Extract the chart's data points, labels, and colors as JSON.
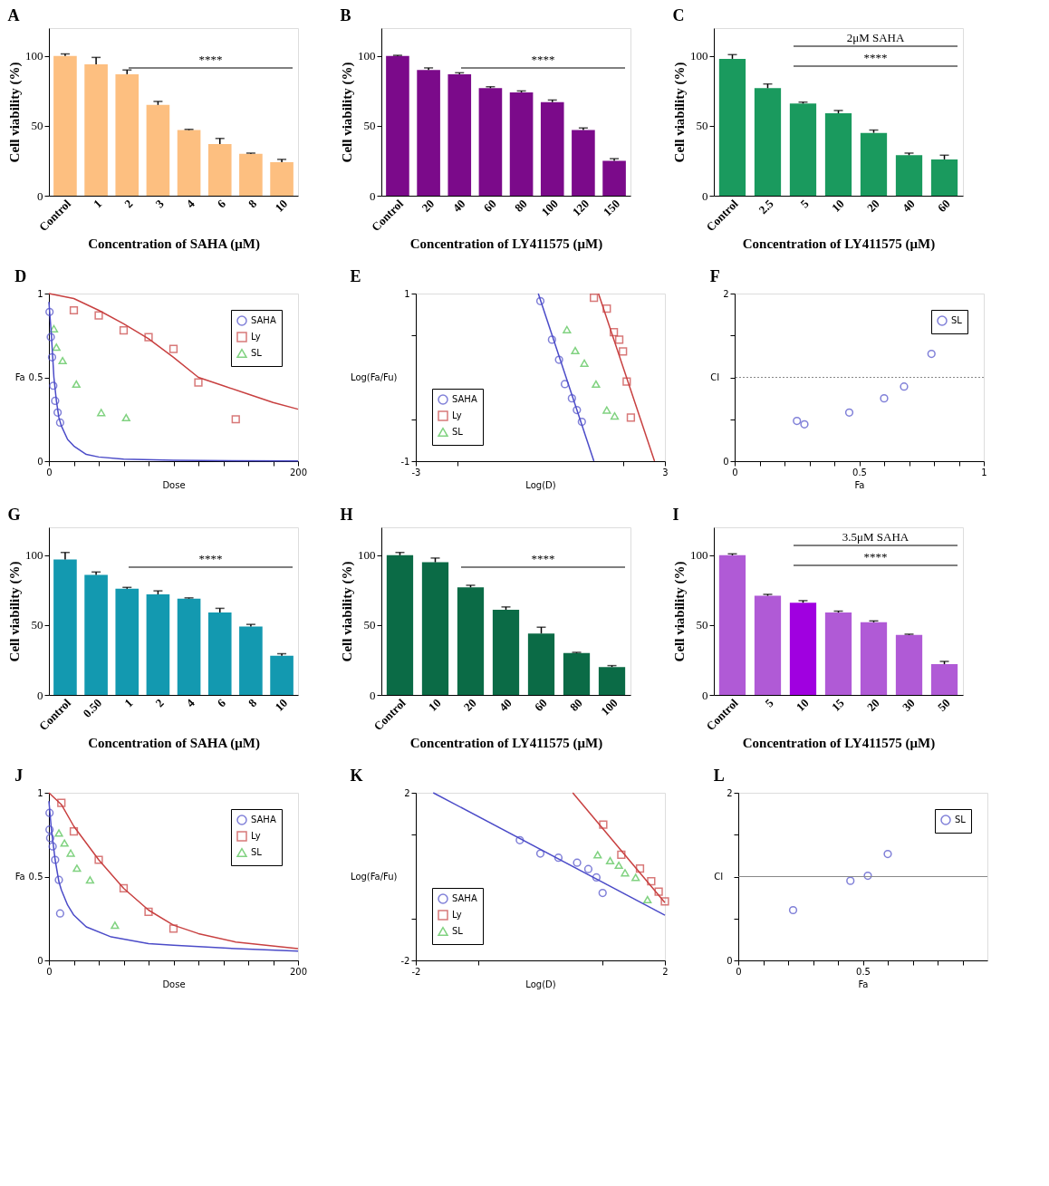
{
  "chart_data": [
    {
      "type": "bar",
      "title": "A",
      "xlabel": "Concentration of SAHA (μM)",
      "ylabel": "Cell viability (%)",
      "categories": [
        "Control",
        "1",
        "2",
        "3",
        "4",
        "6",
        "8",
        "10"
      ],
      "values": [
        100,
        94,
        87,
        65,
        47,
        37,
        30,
        24
      ],
      "errors": [
        1.5,
        5,
        3,
        2.5,
        0.5,
        4,
        0.5,
        2
      ],
      "color": "#fdbf80",
      "ylim": [
        0,
        120
      ],
      "yticks": [
        0,
        50,
        100
      ],
      "legend": false,
      "annotations": [
        "****"
      ]
    },
    {
      "type": "bar",
      "title": "B",
      "xlabel": "Concentration of LY411575 (μM)",
      "ylabel": "Cell viability (%)",
      "categories": [
        "Control",
        "20",
        "40",
        "60",
        "80",
        "100",
        "120",
        "150"
      ],
      "values": [
        100,
        90,
        87,
        77,
        74,
        67,
        47,
        25
      ],
      "errors": [
        0.5,
        1.5,
        1,
        1,
        1,
        1.5,
        1.5,
        1.5
      ],
      "color": "#7b0a8a",
      "ylim": [
        0,
        120
      ],
      "yticks": [
        0,
        50,
        100
      ],
      "legend": false,
      "annotations": [
        "****"
      ]
    },
    {
      "type": "bar",
      "title": "C",
      "xlabel": "Concentration of LY411575 (μM)",
      "ylabel": "Cell viability (%)",
      "categories": [
        "Control",
        "2.5",
        "5",
        "10",
        "20",
        "40",
        "60"
      ],
      "values": [
        98,
        77,
        66,
        59,
        45,
        29,
        26
      ],
      "errors": [
        3,
        3,
        1,
        2,
        2,
        1.5,
        3
      ],
      "color": "#1a9a5e",
      "ylim": [
        0,
        120
      ],
      "yticks": [
        0,
        50,
        100
      ],
      "legend": false,
      "annotations": [
        "2μM SAHA",
        "****"
      ]
    },
    {
      "type": "scatter",
      "title": "D",
      "xlabel": "Dose",
      "ylabel": "Fa",
      "xlim": [
        0,
        200
      ],
      "ylim": [
        0,
        1
      ],
      "legend": "top right",
      "xticks": [
        0,
        {
          "value": 20,
          "label": null
        },
        {
          "value": 40,
          "label": null
        },
        {
          "value": 60,
          "label": null
        },
        {
          "value": 80,
          "label": null
        },
        {
          "value": 100,
          "label": null
        },
        {
          "value": 120,
          "label": null
        },
        {
          "value": 140,
          "label": null
        },
        {
          "value": 160,
          "label": null
        },
        {
          "value": 180,
          "label": null
        },
        200
      ],
      "yticks": [
        0,
        0.5,
        1
      ],
      "series": [
        {
          "name": "SAHA",
          "color": "#4b4bc8",
          "marker": "circle",
          "x": [
            0.5,
            1.5,
            2.5,
            3.5,
            5,
            7,
            9
          ],
          "values": [
            0.89,
            0.74,
            0.62,
            0.45,
            0.36,
            0.29,
            0.23
          ]
        },
        {
          "name": "Ly",
          "color": "#c84040",
          "marker": "square",
          "x": [
            20,
            40,
            60,
            80,
            100,
            120,
            150
          ],
          "values": [
            0.9,
            0.87,
            0.78,
            0.74,
            0.67,
            0.47,
            0.25
          ]
        },
        {
          "name": "SL",
          "color": "#4cc04c",
          "marker": "triangle",
          "x": [
            4,
            6,
            11,
            22,
            42,
            62
          ],
          "values": [
            0.79,
            0.68,
            0.6,
            0.46,
            0.29,
            0.26
          ]
        },
        {
          "type": "line",
          "color": "#4b4bc8",
          "x": [
            0,
            1,
            2,
            4,
            6,
            8,
            10,
            15,
            20,
            30,
            40,
            60,
            100,
            200
          ],
          "values": [
            0.95,
            0.85,
            0.75,
            0.5,
            0.36,
            0.26,
            0.21,
            0.13,
            0.09,
            0.04,
            0.025,
            0.012,
            0.005,
            0.001
          ]
        },
        {
          "type": "line",
          "color": "#c84040",
          "x": [
            0,
            20,
            40,
            60,
            80,
            100,
            120,
            140,
            160,
            180,
            200
          ],
          "values": [
            1.0,
            0.97,
            0.9,
            0.82,
            0.73,
            0.62,
            0.5,
            0.45,
            0.4,
            0.35,
            0.31
          ]
        }
      ]
    },
    {
      "type": "scatter",
      "title": "E",
      "xlabel": "Log(D)",
      "ylabel": "Log(Fa/Fu)",
      "xlim": [
        -3,
        3
      ],
      "ylim": [
        -1,
        1
      ],
      "legend": "bottom left",
      "xticks": [
        -3,
        {
          "value": -2,
          "label": null
        },
        {
          "value": 2,
          "label": null
        },
        3
      ],
      "yticks": [
        -1,
        {
          "value": -0.5,
          "label": null
        },
        {
          "value": 0.5,
          "label": null
        },
        1
      ],
      "series": [
        {
          "name": "SAHA",
          "color": "#4b4bc8",
          "marker": "circle",
          "x": [
            0.0,
            0.28,
            0.45,
            0.59,
            0.76,
            0.88,
            1.0
          ],
          "values": [
            0.91,
            0.45,
            0.21,
            -0.08,
            -0.25,
            -0.39,
            -0.53
          ]
        },
        {
          "name": "Ly",
          "color": "#c84040",
          "marker": "square",
          "x": [
            1.29,
            1.6,
            1.77,
            1.9,
            1.99,
            2.08,
            2.18
          ],
          "values": [
            0.95,
            0.82,
            0.54,
            0.45,
            0.31,
            -0.05,
            -0.48
          ]
        },
        {
          "name": "SL",
          "color": "#4cc04c",
          "marker": "triangle",
          "x": [
            0.64,
            0.84,
            1.06,
            1.34,
            1.6,
            1.79
          ],
          "values": [
            0.57,
            0.32,
            0.17,
            -0.08,
            -0.39,
            -0.46
          ]
        },
        {
          "type": "line",
          "color": "#4b4bc8",
          "x": [
            -0.05,
            1.29
          ],
          "values": [
            1.0,
            -1.0
          ]
        },
        {
          "type": "line",
          "color": "#c84040",
          "x": [
            1.4,
            2.75
          ],
          "values": [
            1.0,
            -1.0
          ]
        }
      ]
    },
    {
      "type": "scatter",
      "title": "F",
      "xlabel": "Fa",
      "ylabel": "CI",
      "xlim": [
        0,
        1
      ],
      "ylim": [
        0,
        2
      ],
      "legend": "top right",
      "xticks": [
        0,
        {
          "value": 0.1,
          "label": null
        },
        {
          "value": 0.2,
          "label": null
        },
        {
          "value": 0.3,
          "label": null
        },
        {
          "value": 0.4,
          "label": null
        },
        0.5,
        {
          "value": 0.6,
          "label": null
        },
        {
          "value": 0.7,
          "label": null
        },
        {
          "value": 0.8,
          "label": null
        },
        {
          "value": 0.9,
          "label": null
        },
        1
      ],
      "yticks": [
        0,
        {
          "value": 0.5,
          "label": null
        },
        {
          "value": 1,
          "label": null
        },
        {
          "value": 1.5,
          "label": null
        },
        2
      ],
      "ref_lines": [
        {
          "axis": "y",
          "value": 1,
          "line_style": "dotted",
          "color": "#888888"
        }
      ],
      "series": [
        {
          "name": "SL",
          "color": "#4b4bc8",
          "marker": "circle",
          "x": [
            0.25,
            0.28,
            0.46,
            0.6,
            0.68,
            0.79
          ],
          "values": [
            0.48,
            0.44,
            0.58,
            0.75,
            0.89,
            1.28
          ]
        }
      ]
    },
    {
      "type": "bar",
      "title": "G",
      "xlabel": "Concentration of SAHA (μM)",
      "ylabel": "Cell viability (%)",
      "categories": [
        "Control",
        "0.50",
        "1",
        "2",
        "4",
        "6",
        "8",
        "10"
      ],
      "values": [
        97,
        86,
        76,
        72,
        69,
        59,
        49,
        28
      ],
      "errors": [
        5,
        2,
        1,
        2.5,
        0.5,
        3,
        1.5,
        1.5
      ],
      "color": "#1399b0",
      "ylim": [
        0,
        120
      ],
      "yticks": [
        0,
        50,
        100
      ],
      "legend": false,
      "annotations": [
        "****"
      ]
    },
    {
      "type": "bar",
      "title": "H",
      "xlabel": "Concentration of LY411575 (μM)",
      "ylabel": "Cell viability (%)",
      "categories": [
        "Control",
        "10",
        "20",
        "40",
        "60",
        "80",
        "100"
      ],
      "values": [
        100,
        95,
        77,
        61,
        44,
        30,
        20
      ],
      "errors": [
        2,
        3,
        1.5,
        2,
        4.5,
        0.5,
        1
      ],
      "color": "#0b6b46",
      "ylim": [
        0,
        120
      ],
      "yticks": [
        0,
        50,
        100
      ],
      "legend": false,
      "annotations": [
        "****"
      ]
    },
    {
      "type": "bar",
      "title": "I",
      "xlabel": "Concentration of LY411575 (μM)",
      "ylabel": "Cell viability (%)",
      "categories": [
        "Control",
        "5",
        "10",
        "15",
        "20",
        "30",
        "50"
      ],
      "values": [
        100,
        71,
        66,
        59,
        52,
        43,
        22
      ],
      "errors": [
        1,
        1,
        1.5,
        1,
        1,
        0.5,
        2
      ],
      "colors": [
        "#b05ad6",
        "#b05ad6",
        "#a000e0",
        "#b05ad6",
        "#b05ad6",
        "#b05ad6",
        "#b05ad6"
      ],
      "ylim": [
        0,
        120
      ],
      "yticks": [
        0,
        50,
        100
      ],
      "legend": false,
      "annotations": [
        "3.5μM SAHA",
        "****"
      ]
    },
    {
      "type": "scatter",
      "title": "J",
      "xlabel": "Dose",
      "ylabel": "Fa",
      "xlim": [
        0,
        200
      ],
      "ylim": [
        0,
        1
      ],
      "legend": "top right",
      "xticks": [
        0,
        {
          "value": 20,
          "label": null
        },
        {
          "value": 40,
          "label": null
        },
        {
          "value": 60,
          "label": null
        },
        {
          "value": 80,
          "label": null
        },
        {
          "value": 100,
          "label": null
        },
        {
          "value": 120,
          "label": null
        },
        {
          "value": 140,
          "label": null
        },
        {
          "value": 160,
          "label": null
        },
        {
          "value": 180,
          "label": null
        },
        200
      ],
      "yticks": [
        0,
        0.5,
        1
      ],
      "series": [
        {
          "name": "SAHA",
          "color": "#4b4bc8",
          "marker": "circle",
          "x": [
            0.5,
            0.5,
            1,
            3,
            5,
            8,
            9
          ],
          "values": [
            0.88,
            0.78,
            0.73,
            0.68,
            0.6,
            0.48,
            0.28
          ]
        },
        {
          "name": "Ly",
          "color": "#c84040",
          "marker": "square",
          "x": [
            10,
            20,
            40,
            60,
            80,
            100
          ],
          "values": [
            0.94,
            0.77,
            0.6,
            0.43,
            0.29,
            0.19
          ]
        },
        {
          "name": "SL",
          "color": "#4cc04c",
          "marker": "triangle",
          "x": [
            8,
            12.5,
            17.5,
            22.5,
            33,
            53
          ],
          "values": [
            0.76,
            0.7,
            0.64,
            0.55,
            0.48,
            0.21
          ]
        },
        {
          "type": "line",
          "color": "#4b4bc8",
          "x": [
            0,
            2,
            5,
            8,
            10,
            15,
            20,
            30,
            50,
            80,
            100,
            150,
            200
          ],
          "values": [
            0.95,
            0.78,
            0.6,
            0.47,
            0.42,
            0.33,
            0.27,
            0.2,
            0.14,
            0.1,
            0.09,
            0.07,
            0.055
          ]
        },
        {
          "type": "line",
          "color": "#c84040",
          "x": [
            0,
            10,
            20,
            40,
            60,
            80,
            100,
            120,
            150,
            200
          ],
          "values": [
            1.0,
            0.93,
            0.8,
            0.6,
            0.43,
            0.3,
            0.21,
            0.16,
            0.11,
            0.07
          ]
        }
      ]
    },
    {
      "type": "scatter",
      "title": "K",
      "xlabel": "Log(D)",
      "ylabel": "Log(Fa/Fu)",
      "xlim": [
        -2,
        2
      ],
      "ylim": [
        -2,
        2
      ],
      "legend": "bottom left",
      "xticks": [
        -2,
        {
          "value": -1,
          "label": null
        },
        {
          "value": 1,
          "label": null
        },
        2
      ],
      "yticks": [
        -2,
        {
          "value": -1,
          "label": null
        },
        {
          "value": 1,
          "label": null
        },
        2
      ],
      "series": [
        {
          "name": "SAHA",
          "color": "#4b4bc8",
          "marker": "circle",
          "x": [
            -0.33,
            0.0,
            0.29,
            0.59,
            0.77,
            0.9,
            1.0
          ],
          "values": [
            0.87,
            0.55,
            0.45,
            0.33,
            0.18,
            -0.02,
            -0.39
          ]
        },
        {
          "name": "Ly",
          "color": "#c84040",
          "marker": "square",
          "x": [
            1.01,
            1.3,
            1.6,
            1.78,
            1.9,
            2.0
          ],
          "values": [
            1.24,
            0.52,
            0.19,
            -0.11,
            -0.36,
            -0.59
          ]
        },
        {
          "name": "SL",
          "color": "#4cc04c",
          "marker": "triangle",
          "x": [
            0.92,
            1.12,
            1.26,
            1.36,
            1.53,
            1.72
          ],
          "values": [
            0.52,
            0.38,
            0.27,
            0.09,
            -0.02,
            -0.55
          ]
        },
        {
          "type": "line",
          "color": "#4b4bc8",
          "x": [
            -1.72,
            2.0
          ],
          "values": [
            2.0,
            -0.92
          ]
        },
        {
          "type": "line",
          "color": "#c84040",
          "x": [
            0.52,
            2.0
          ],
          "values": [
            2.0,
            -0.62
          ]
        }
      ]
    },
    {
      "type": "scatter",
      "title": "L",
      "xlabel": "Fa",
      "ylabel": "CI",
      "xlim": [
        0,
        1
      ],
      "ylim": [
        0,
        2
      ],
      "legend": "top right",
      "xticks": [
        0,
        {
          "value": 0.1,
          "label": null
        },
        {
          "value": 0.2,
          "label": null
        },
        {
          "value": 0.3,
          "label": null
        },
        {
          "value": 0.4,
          "label": null
        },
        0.5,
        {
          "value": 0.6,
          "label": null
        },
        {
          "value": 0.7,
          "label": null
        },
        {
          "value": 0.8,
          "label": null
        },
        {
          "value": 0.9,
          "label": null
        }
      ],
      "yticks": [
        0,
        {
          "value": 0.5,
          "label": null
        },
        {
          "value": 1,
          "label": null
        },
        {
          "value": 1.5,
          "label": null
        },
        2
      ],
      "ref_lines": [
        {
          "axis": "y",
          "value": 1,
          "line_style": "solid",
          "color": "#888888"
        }
      ],
      "series": [
        {
          "name": "SL",
          "color": "#4b4bc8",
          "marker": "circle",
          "x": [
            0.22,
            0.45,
            0.52,
            0.6
          ],
          "values": [
            0.6,
            0.95,
            1.01,
            1.27
          ]
        }
      ]
    }
  ]
}
